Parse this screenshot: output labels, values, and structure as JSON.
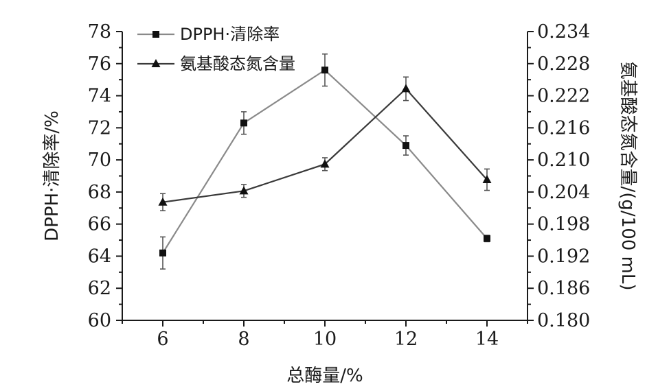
{
  "chart_data": {
    "type": "line",
    "x": [
      6,
      8,
      10,
      12,
      14
    ],
    "xlabel": "总酶量/%",
    "xlim": [
      5,
      15
    ],
    "xticks": [
      "6",
      "8",
      "10",
      "12",
      "14"
    ],
    "left_axis": {
      "label": "DPPH·清除率/%",
      "lim": [
        60,
        78
      ],
      "ticks": [
        "60",
        "62",
        "64",
        "66",
        "68",
        "70",
        "72",
        "74",
        "76",
        "78"
      ]
    },
    "right_axis": {
      "label": "氨基酸态氮含量/(g/100 mL)",
      "lim": [
        0.18,
        0.234
      ],
      "ticks": [
        "0.180",
        "0.186",
        "0.192",
        "0.198",
        "0.204",
        "0.210",
        "0.216",
        "0.222",
        "0.228",
        "0.234"
      ]
    },
    "series": [
      {
        "name": "DPPH·清除率",
        "axis": "left",
        "marker": "square",
        "color": "#8a8a8a",
        "values": [
          64.2,
          72.3,
          75.6,
          70.9,
          65.1
        ],
        "errors": [
          1.0,
          0.7,
          1.0,
          0.6,
          0.2
        ]
      },
      {
        "name": "氨基酸态氮含量",
        "axis": "right",
        "marker": "triangle",
        "color": "#3a3a3a",
        "values": [
          0.2021,
          0.2042,
          0.2092,
          0.2233,
          0.2063
        ],
        "errors": [
          0.0016,
          0.0012,
          0.0012,
          0.0022,
          0.002
        ]
      }
    ],
    "legend_position": "top-left",
    "grid": false
  }
}
